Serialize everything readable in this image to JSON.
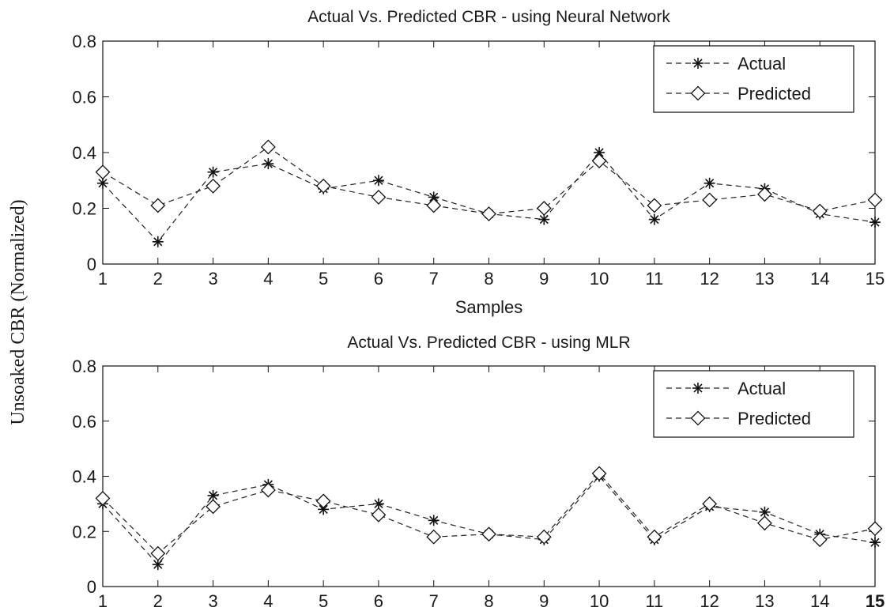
{
  "figure": {
    "shared_ylabel": "Unsoaked CBR (Normalized)"
  },
  "chart_data": [
    {
      "type": "line",
      "title": "Actual Vs. Predicted CBR - using Neural Network",
      "xlabel": "Samples",
      "ylabel": "Unsoaked CBR (Normalized)",
      "xlim": [
        1,
        15
      ],
      "ylim": [
        0,
        0.8
      ],
      "x": [
        1,
        2,
        3,
        4,
        5,
        6,
        7,
        8,
        9,
        10,
        11,
        12,
        13,
        14,
        15
      ],
      "xticks": [
        "1",
        "2",
        "3",
        "4",
        "5",
        "6",
        "7",
        "8",
        "9",
        "10",
        "11",
        "12",
        "13",
        "14",
        "15"
      ],
      "yticks": [
        "0",
        "0.2",
        "0.4",
        "0.6",
        "0.8"
      ],
      "yticks_values": [
        0,
        0.2,
        0.4,
        0.6,
        0.8
      ],
      "grid": false,
      "legend_position": "top-right",
      "series": [
        {
          "name": "Actual",
          "marker": "star",
          "line": "dashed",
          "values": [
            0.29,
            0.08,
            0.33,
            0.36,
            0.27,
            0.3,
            0.24,
            0.18,
            0.16,
            0.4,
            0.16,
            0.29,
            0.27,
            0.18,
            0.15
          ]
        },
        {
          "name": "Predicted",
          "marker": "diamond",
          "line": "dashed",
          "values": [
            0.33,
            0.21,
            0.28,
            0.42,
            0.28,
            0.24,
            0.21,
            0.18,
            0.2,
            0.37,
            0.21,
            0.23,
            0.25,
            0.19,
            0.23
          ]
        }
      ]
    },
    {
      "type": "line",
      "title": "Actual Vs. Predicted CBR - using MLR",
      "xlabel": "",
      "ylabel": "Unsoaked CBR (Normalized)",
      "xlim": [
        1,
        15
      ],
      "ylim": [
        0,
        0.8
      ],
      "x": [
        1,
        2,
        3,
        4,
        5,
        6,
        7,
        8,
        9,
        10,
        11,
        12,
        13,
        14,
        15
      ],
      "xticks": [
        "1",
        "2",
        "3",
        "4",
        "5",
        "6",
        "7",
        "8",
        "9",
        "10",
        "11",
        "12",
        "13",
        "14",
        "15"
      ],
      "yticks": [
        "0",
        "0.2",
        "0.4",
        "0.6",
        "0.8"
      ],
      "yticks_values": [
        0,
        0.2,
        0.4,
        0.6,
        0.8
      ],
      "grid": false,
      "legend_position": "top-right",
      "series": [
        {
          "name": "Actual",
          "marker": "star",
          "line": "dashed",
          "values": [
            0.3,
            0.08,
            0.33,
            0.37,
            0.28,
            0.3,
            0.24,
            0.19,
            0.17,
            0.4,
            0.17,
            0.29,
            0.27,
            0.19,
            0.16
          ]
        },
        {
          "name": "Predicted",
          "marker": "diamond",
          "line": "dashed",
          "values": [
            0.32,
            0.12,
            0.29,
            0.35,
            0.31,
            0.26,
            0.18,
            0.19,
            0.18,
            0.41,
            0.18,
            0.3,
            0.23,
            0.17,
            0.21
          ]
        }
      ]
    }
  ]
}
